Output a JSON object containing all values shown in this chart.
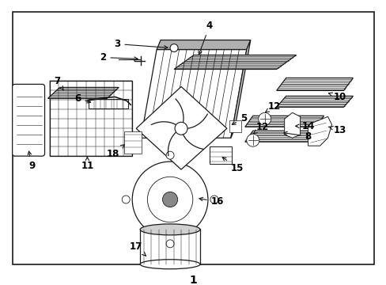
{
  "background_color": "#ffffff",
  "border_color": "#000000",
  "line_color": "#1a1a1a",
  "label_color": "#000000",
  "figure_width": 4.89,
  "figure_height": 3.6,
  "dpi": 100,
  "bottom_label": "1",
  "gray_fill": "#d0d0d0",
  "light_gray": "#e8e8e8"
}
